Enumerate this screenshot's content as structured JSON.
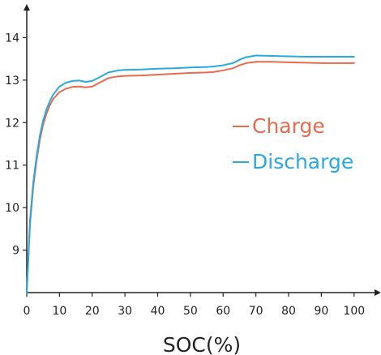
{
  "chart_data": {
    "type": "line",
    "title": "",
    "xlabel": "SOC(%)",
    "ylabel": "",
    "xlim": [
      0,
      106
    ],
    "ylim": [
      8,
      14.6
    ],
    "xticks": [
      "0",
      "10",
      "20",
      "30",
      "40",
      "50",
      "60",
      "70",
      "80",
      "90",
      "100"
    ],
    "yticks": [
      "9",
      "10",
      "11",
      "12",
      "13",
      "14"
    ],
    "grid": false,
    "legend_position": "right",
    "series": [
      {
        "name": "Charge",
        "color": "#e86a4f",
        "x": [
          0,
          1,
          2,
          3,
          4,
          5,
          6,
          7,
          8,
          10,
          12,
          14,
          16,
          18,
          20,
          22,
          25,
          28,
          30,
          35,
          40,
          45,
          50,
          55,
          57,
          60,
          63,
          65,
          67,
          70,
          75,
          80,
          85,
          90,
          95,
          100
        ],
        "y": [
          8.0,
          9.6,
          10.5,
          11.1,
          11.6,
          11.95,
          12.2,
          12.4,
          12.55,
          12.72,
          12.8,
          12.84,
          12.85,
          12.83,
          12.85,
          12.93,
          13.05,
          13.09,
          13.1,
          13.11,
          13.13,
          13.15,
          13.17,
          13.18,
          13.19,
          13.23,
          13.28,
          13.35,
          13.4,
          13.43,
          13.43,
          13.42,
          13.41,
          13.4,
          13.4,
          13.4
        ]
      },
      {
        "name": "Discharge",
        "color": "#29a9e0",
        "x": [
          0,
          1,
          2,
          3,
          4,
          5,
          6,
          7,
          8,
          10,
          12,
          14,
          16,
          18,
          20,
          22,
          25,
          28,
          30,
          35,
          40,
          45,
          50,
          55,
          57,
          60,
          63,
          65,
          67,
          70,
          75,
          80,
          85,
          90,
          95,
          100
        ],
        "y": [
          8.0,
          9.7,
          10.6,
          11.2,
          11.7,
          12.05,
          12.3,
          12.5,
          12.65,
          12.85,
          12.94,
          12.98,
          12.99,
          12.96,
          12.98,
          13.06,
          13.18,
          13.23,
          13.24,
          13.25,
          13.27,
          13.28,
          13.3,
          13.31,
          13.32,
          13.35,
          13.4,
          13.48,
          13.54,
          13.58,
          13.57,
          13.56,
          13.55,
          13.55,
          13.55,
          13.55
        ]
      }
    ]
  }
}
